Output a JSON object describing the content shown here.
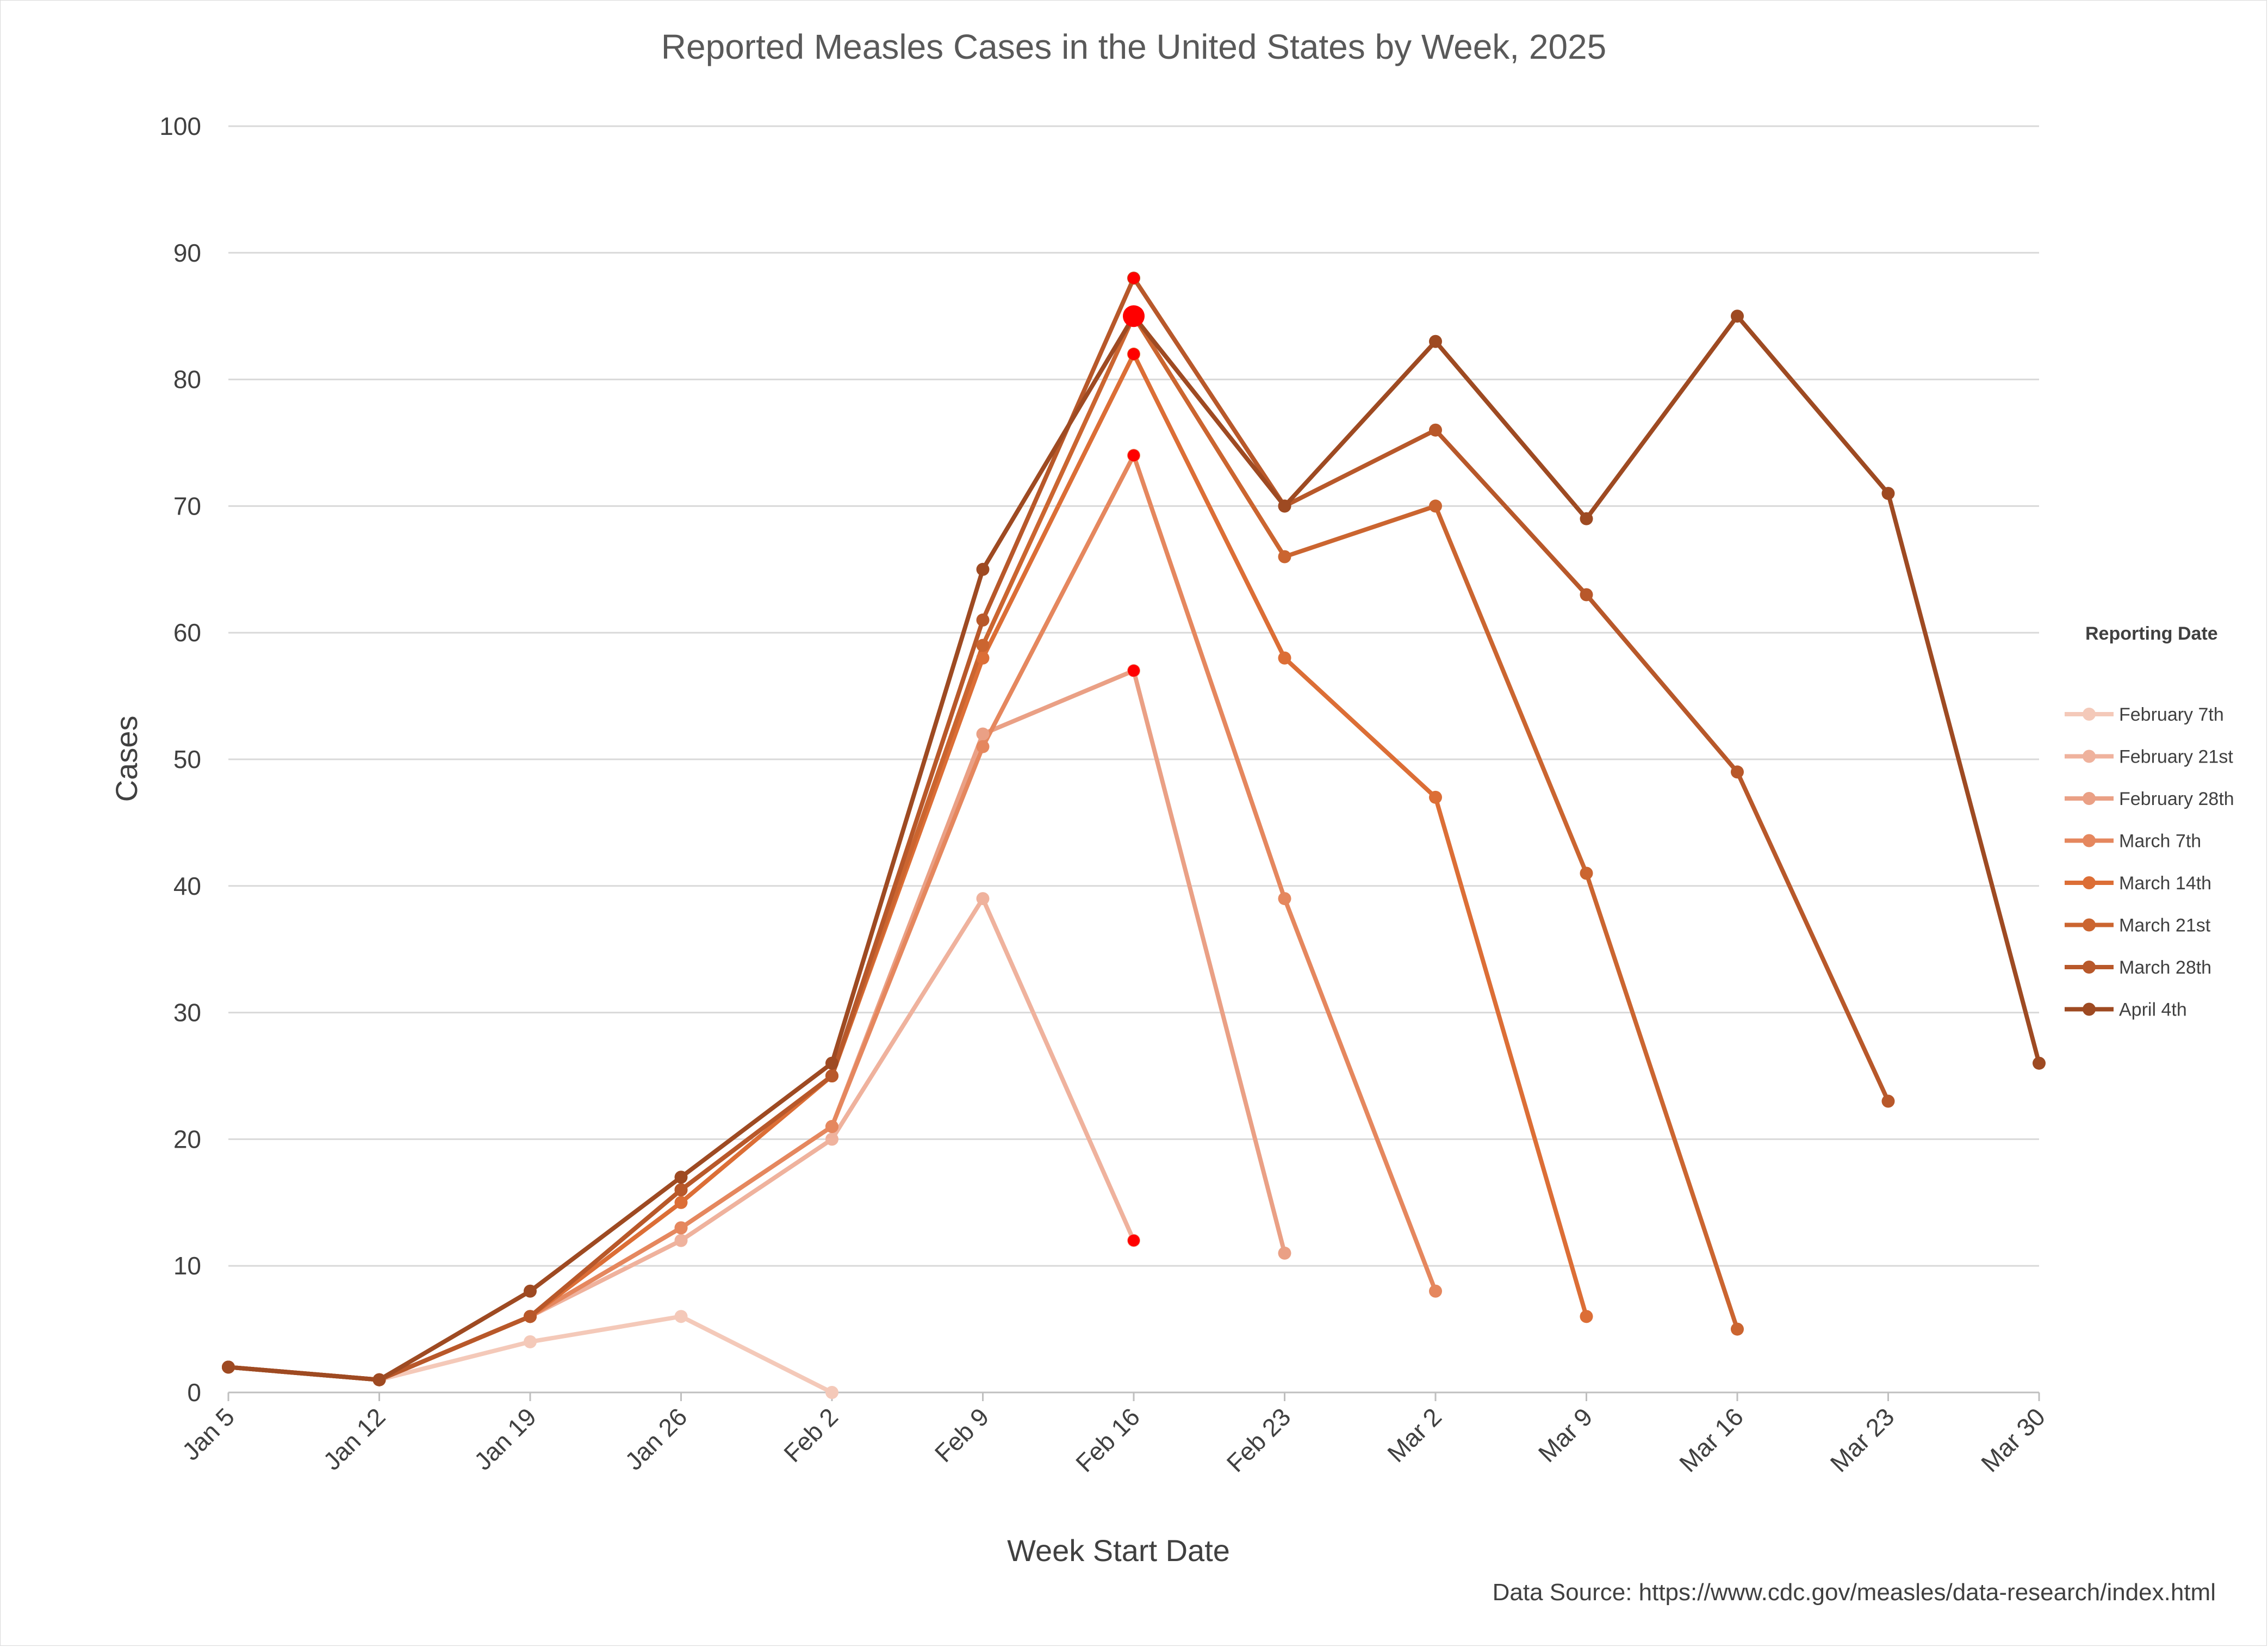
{
  "chart_data": {
    "type": "line",
    "title": "Reported Measles Cases in the United States by Week, 2025",
    "xlabel": "Week Start Date",
    "ylabel": "Cases",
    "ylim": [
      0,
      100
    ],
    "yticks": [
      0,
      10,
      20,
      30,
      40,
      50,
      60,
      70,
      80,
      90,
      100
    ],
    "grid": true,
    "legend_title": "Reporting Date",
    "legend_position": "right",
    "categories": [
      "Jan 5",
      "Jan 12",
      "Jan 19",
      "Jan 26",
      "Feb 2",
      "Feb 9",
      "Feb 16",
      "Feb 23",
      "Mar 2",
      "Mar 9",
      "Mar 16",
      "Mar 23",
      "Mar 30"
    ],
    "series": [
      {
        "name": "February 7th",
        "color": "#f4c9b9",
        "values": [
          2,
          1,
          4,
          6,
          0,
          null,
          null,
          null,
          null,
          null,
          null,
          null,
          null
        ]
      },
      {
        "name": "February 21st",
        "color": "#efb29d",
        "values": [
          2,
          1,
          6,
          12,
          20,
          39,
          12,
          null,
          null,
          null,
          null,
          null,
          null
        ]
      },
      {
        "name": "February 28th",
        "color": "#eaa085",
        "values": [
          2,
          1,
          6,
          13,
          21,
          52,
          57,
          11,
          null,
          null,
          null,
          null,
          null
        ]
      },
      {
        "name": "March 7th",
        "color": "#e5875e",
        "values": [
          2,
          1,
          6,
          13,
          21,
          51,
          74,
          39,
          8,
          null,
          null,
          null,
          null
        ]
      },
      {
        "name": "March 14th",
        "color": "#dc6e36",
        "values": [
          2,
          1,
          6,
          15,
          25,
          58,
          82,
          58,
          47,
          6,
          null,
          null,
          null
        ]
      },
      {
        "name": "March 21st",
        "color": "#cb6530",
        "values": [
          2,
          1,
          6,
          16,
          25,
          59,
          85,
          66,
          70,
          41,
          5,
          null,
          null
        ]
      },
      {
        "name": "March 28th",
        "color": "#b8582a",
        "values": [
          2,
          1,
          6,
          16,
          25,
          61,
          88,
          70,
          76,
          63,
          49,
          23,
          null
        ]
      },
      {
        "name": "April 4th",
        "color": "#9e4a22",
        "values": [
          2,
          1,
          8,
          17,
          26,
          65,
          85,
          70,
          83,
          69,
          85,
          71,
          26
        ]
      }
    ],
    "highlight_color": "#ff0000",
    "highlight_points": [
      {
        "series": "February 21st",
        "x": "Feb 16",
        "y": 12
      },
      {
        "series": "February 28th",
        "x": "Feb 16",
        "y": 57
      },
      {
        "series": "March 7th",
        "x": "Feb 16",
        "y": 74
      },
      {
        "series": "March 14th",
        "x": "Feb 16",
        "y": 82
      },
      {
        "series": "March 21st",
        "x": "Feb 16",
        "y": 85
      },
      {
        "series": "March 28th",
        "x": "Feb 16",
        "y": 88
      }
    ],
    "source": "Data Source: https://www.cdc.gov/measles/data-research/index.html"
  }
}
